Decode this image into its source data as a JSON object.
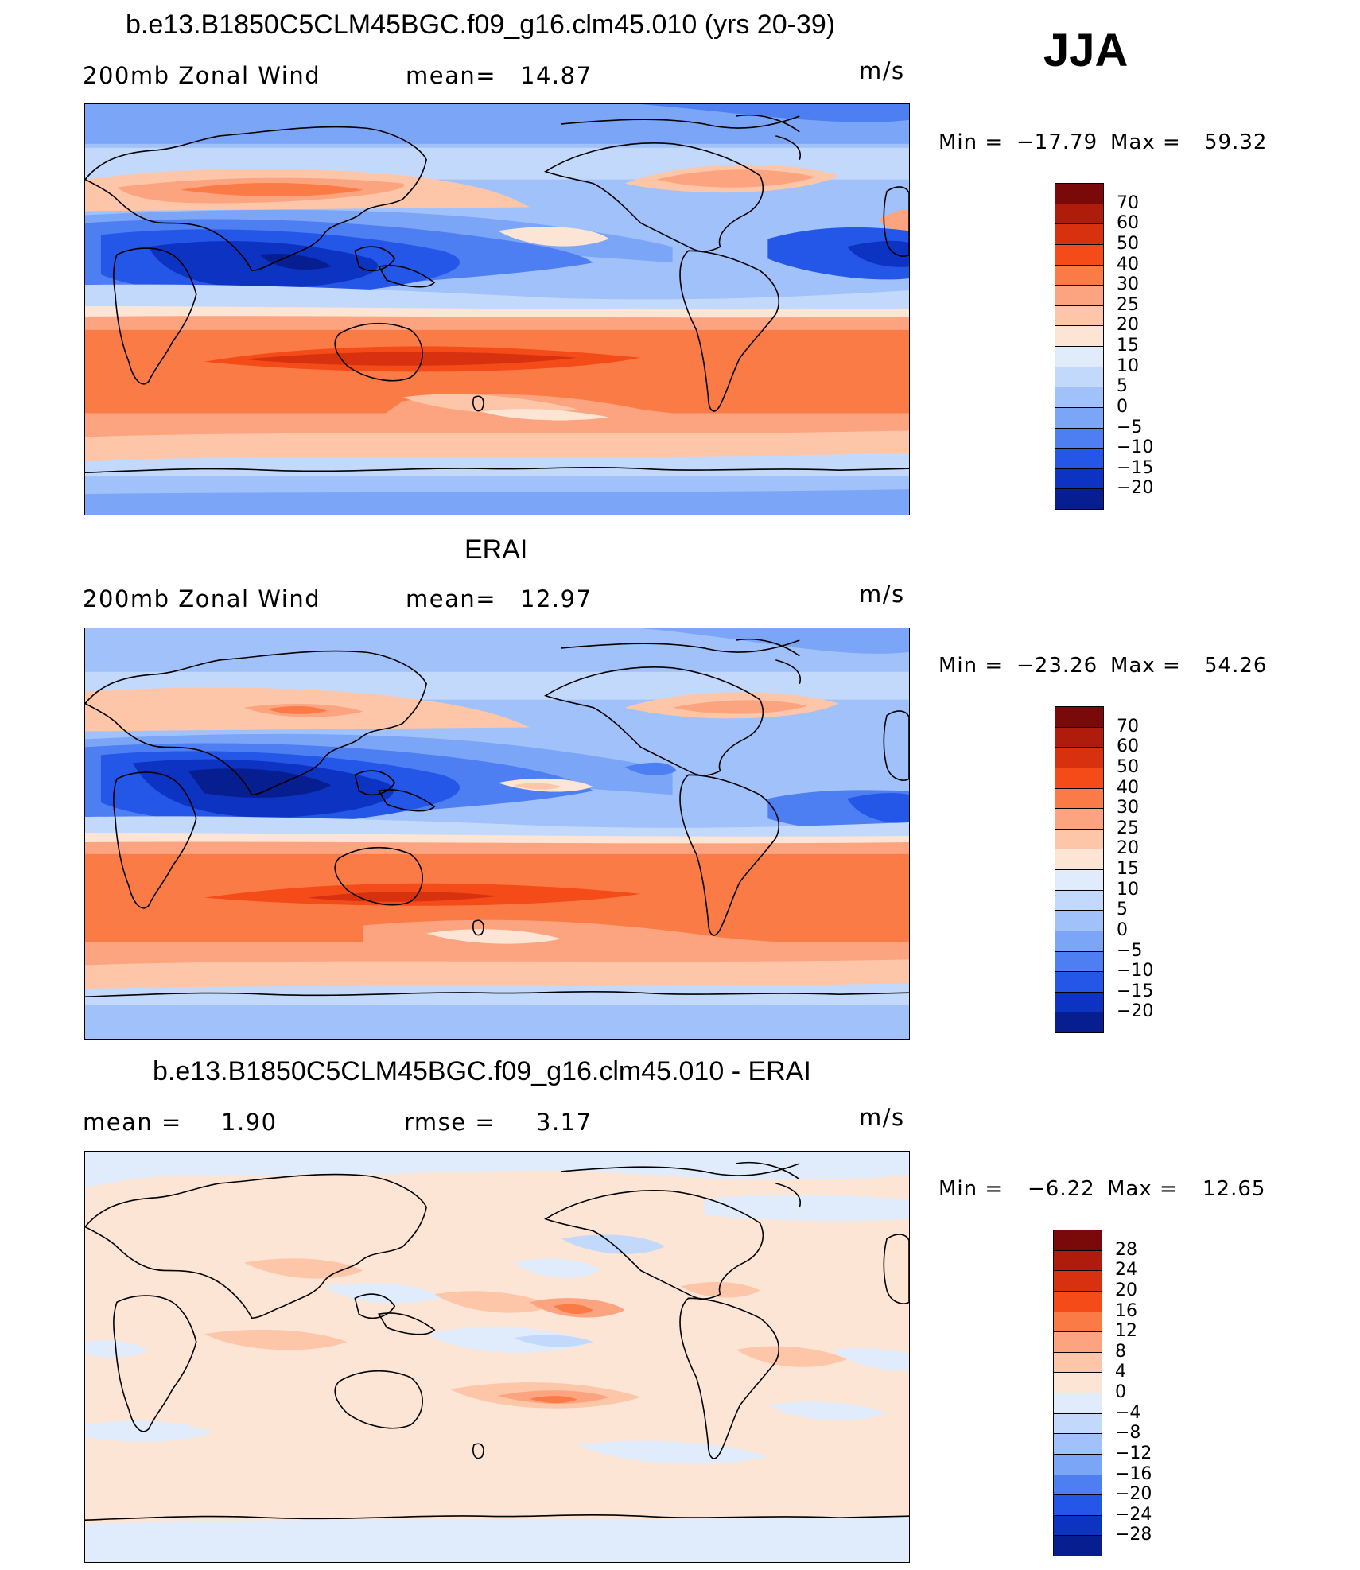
{
  "season": "JJA",
  "panels": [
    {
      "title": "b.e13.B1850C5CLM45BGC.f09_g16.clm45.010 (yrs 20-39)",
      "left_label": "200mb Zonal Wind",
      "stat1_label": "mean=",
      "stat1_value": "14.87",
      "stat2_label": "",
      "stat2_value": "",
      "units": "m/s",
      "min_label": "Min =",
      "min_value": "−17.79",
      "max_label": "Max =",
      "max_value": "59.32"
    },
    {
      "title": "ERAI",
      "left_label": "200mb Zonal Wind",
      "stat1_label": "mean=",
      "stat1_value": "12.97",
      "stat2_label": "",
      "stat2_value": "",
      "units": "m/s",
      "min_label": "Min =",
      "min_value": "−23.26",
      "max_label": "Max =",
      "max_value": "54.26"
    },
    {
      "title": "b.e13.B1850C5CLM45BGC.f09_g16.clm45.010 - ERAI",
      "left_label": "",
      "stat1_label": "mean =",
      "stat1_value": "1.90",
      "stat2_label": "rmse =",
      "stat2_value": "3.17",
      "units": "m/s",
      "min_label": "Min =",
      "min_value": "−6.22",
      "max_label": "Max =",
      "max_value": "12.65"
    }
  ],
  "legends": {
    "wind": {
      "ticks": [
        "70",
        "60",
        "50",
        "40",
        "30",
        "25",
        "20",
        "15",
        "10",
        "5",
        "0",
        "−5",
        "−10",
        "−15",
        "−20"
      ],
      "colors": [
        "#7a0a0a",
        "#b01c0c",
        "#d83110",
        "#f54b18",
        "#fa7b46",
        "#fca37f",
        "#fdc6a8",
        "#fde5d5",
        "#e0ecfb",
        "#c3d9fb",
        "#a0c1fa",
        "#7ba5f7",
        "#4d7ef2",
        "#2456e8",
        "#0d33c2",
        "#061e8f"
      ]
    },
    "diff": {
      "ticks": [
        "28",
        "24",
        "20",
        "16",
        "12",
        "8",
        "4",
        "0",
        "−4",
        "−8",
        "−12",
        "−16",
        "−20",
        "−24",
        "−28"
      ],
      "colors": [
        "#7a0a0a",
        "#b01c0c",
        "#d83110",
        "#f54b18",
        "#fa7b46",
        "#fca37f",
        "#fdc6a8",
        "#fde5d5",
        "#e0ecfb",
        "#c3d9fb",
        "#a0c1fa",
        "#7ba5f7",
        "#4d7ef2",
        "#2456e8",
        "#0d33c2",
        "#061e8f"
      ]
    }
  }
}
